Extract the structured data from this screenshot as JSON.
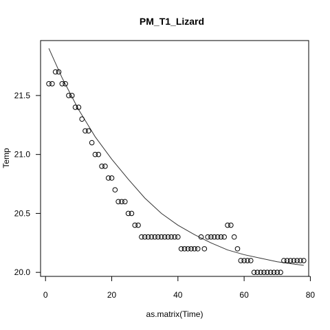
{
  "chart_data": {
    "type": "scatter",
    "title": "PM_T1_Lizard",
    "xlabel": "as.matrix(Time)",
    "ylabel": "Temp",
    "xlim": [
      -1.5,
      79.5
    ],
    "ylim": [
      19.966,
      21.966
    ],
    "x_ticks": [
      0,
      20,
      40,
      60,
      80
    ],
    "y_ticks": [
      20.0,
      20.5,
      21.0,
      21.5
    ],
    "x_tick_labels": [
      "0",
      "20",
      "40",
      "60",
      "80"
    ],
    "y_tick_labels": [
      "20.0",
      "20.5",
      "21.0",
      "21.5"
    ],
    "grid": false,
    "series": [
      {
        "marker": "open-circle",
        "x": [
          1,
          2,
          3,
          4,
          5,
          6,
          7,
          8,
          9,
          10,
          11,
          12,
          13,
          14,
          15,
          16,
          17,
          18,
          19,
          20,
          21,
          22,
          23,
          24,
          25,
          26,
          27,
          28,
          29,
          30,
          31,
          32,
          33,
          34,
          35,
          36,
          37,
          38,
          39,
          40,
          41,
          42,
          43,
          44,
          45,
          46,
          47,
          48,
          49,
          50,
          51,
          52,
          53,
          54,
          55,
          56,
          57,
          58,
          59,
          60,
          61,
          62,
          63,
          64,
          65,
          66,
          67,
          68,
          69,
          70,
          71,
          72,
          73,
          74,
          75,
          76,
          77,
          78
        ],
        "y": [
          21.6,
          21.6,
          21.7,
          21.7,
          21.6,
          21.6,
          21.5,
          21.5,
          21.4,
          21.4,
          21.3,
          21.2,
          21.2,
          21.1,
          21.0,
          21.0,
          20.9,
          20.9,
          20.8,
          20.8,
          20.7,
          20.6,
          20.6,
          20.6,
          20.5,
          20.5,
          20.4,
          20.4,
          20.3,
          20.3,
          20.3,
          20.3,
          20.3,
          20.3,
          20.3,
          20.3,
          20.3,
          20.3,
          20.3,
          20.3,
          20.2,
          20.2,
          20.2,
          20.2,
          20.2,
          20.2,
          20.3,
          20.2,
          20.3,
          20.3,
          20.3,
          20.3,
          20.3,
          20.3,
          20.4,
          20.4,
          20.3,
          20.2,
          20.1,
          20.1,
          20.1,
          20.1,
          20.0,
          20.0,
          20.0,
          20.0,
          20.0,
          20.0,
          20.0,
          20.0,
          20.0,
          20.1,
          20.1,
          20.1,
          20.1,
          20.1,
          20.1,
          20.1
        ]
      },
      {
        "marker": "line",
        "x": [
          1,
          5,
          10,
          15,
          20,
          25,
          30,
          35,
          40,
          45,
          50,
          55,
          60,
          65,
          70,
          75,
          78
        ],
        "y": [
          21.9,
          21.65,
          21.38,
          21.15,
          20.96,
          20.79,
          20.63,
          20.5,
          20.4,
          20.32,
          20.25,
          20.19,
          20.15,
          20.12,
          20.09,
          20.07,
          20.06
        ]
      }
    ]
  }
}
